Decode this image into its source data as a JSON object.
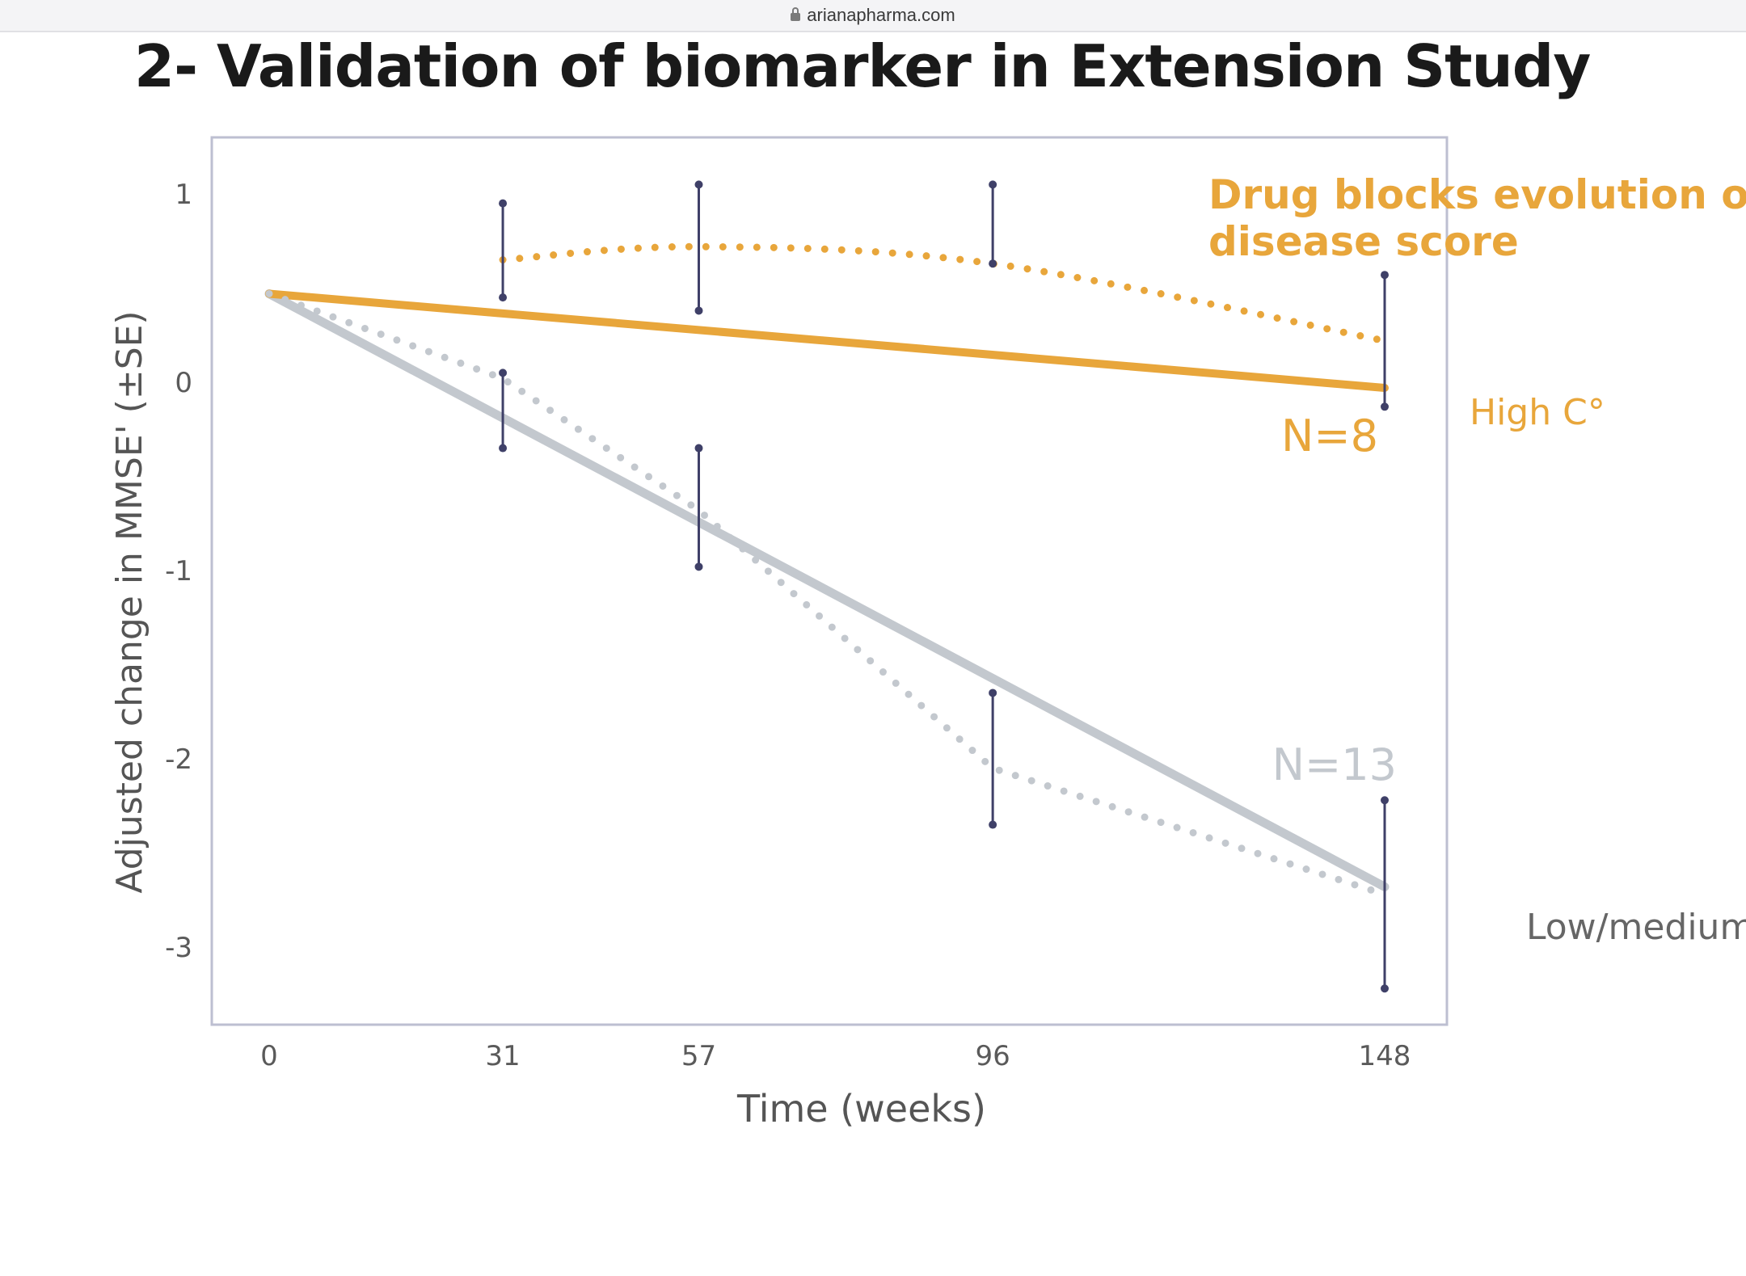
{
  "browser": {
    "url": "arianapharma.com"
  },
  "slide": {
    "title": "2- Validation of biomarker in Extension Study"
  },
  "chart_data": {
    "type": "line",
    "xlabel": "Time (weeks)",
    "ylabel": "Adjusted change in MMSE' (±SE)",
    "x_ticks": [
      0,
      31,
      57,
      96,
      148
    ],
    "y_ticks": [
      1,
      0,
      -1,
      -2,
      -3
    ],
    "xlim": [
      0,
      148
    ],
    "ylim": [
      -3.45,
      1.3
    ],
    "grid": false,
    "colors": {
      "high": "#e8a63b",
      "low": "#c3c8ce",
      "error_bar": "#3f4068",
      "frame": "#bdbfd1"
    },
    "series": [
      {
        "name": "High C°",
        "style": "observed-dotted",
        "x": [
          31,
          57,
          96,
          148
        ],
        "y": [
          0.65,
          0.72,
          0.63,
          0.22
        ],
        "se_low": [
          0.45,
          0.38,
          0.63,
          -0.13
        ],
        "se_high": [
          0.95,
          1.05,
          1.05,
          0.57
        ]
      },
      {
        "name": "High C°",
        "style": "fit-solid",
        "x": [
          0,
          148
        ],
        "y": [
          0.47,
          -0.03
        ]
      },
      {
        "name": "Low/medium",
        "style": "observed-dotted",
        "x": [
          0,
          31,
          57,
          96,
          148
        ],
        "y": [
          0.47,
          0.02,
          -0.68,
          -2.05,
          -2.72
        ],
        "se_low": [
          null,
          -0.35,
          -0.98,
          -2.35,
          -3.22
        ],
        "se_high": [
          null,
          0.05,
          -0.35,
          -1.65,
          -2.22
        ]
      },
      {
        "name": "Low/medium",
        "style": "fit-solid",
        "x": [
          0,
          148
        ],
        "y": [
          0.47,
          -2.68
        ]
      }
    ],
    "annotations": {
      "drug_line1": "Drug blocks evolution of",
      "drug_line2": "disease score",
      "n_high": "N=8",
      "n_low": "N=13",
      "label_high": "High C°",
      "label_low": "Low/medium"
    }
  }
}
